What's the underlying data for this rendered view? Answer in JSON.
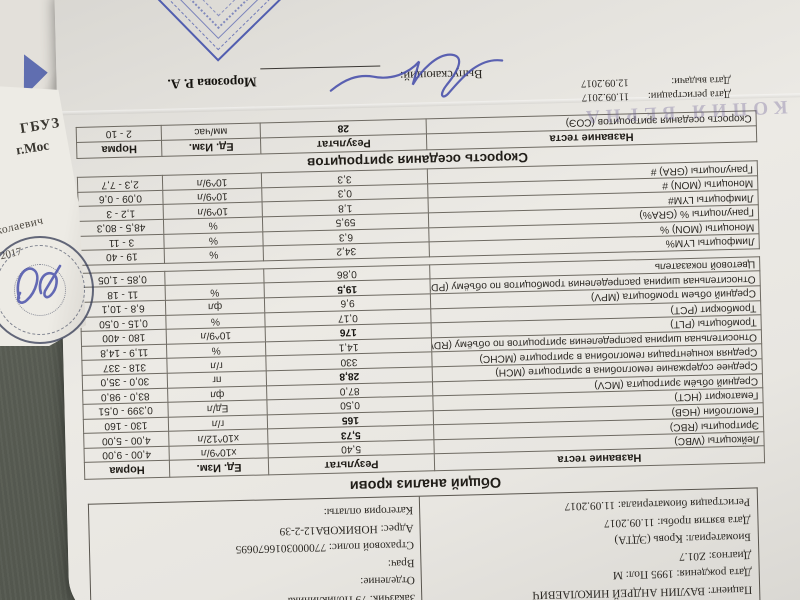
{
  "side_paper": {
    "org_line1": "ГБУЗ",
    "org_line2": "г.Мос",
    "handwritten_fragment": "колаевич",
    "year_fragment": "2017"
  },
  "report": {
    "patient_box": {
      "left_lines": [
        "Пациент: ВАУЛИН АНДРЕЙ НИКОЛАЕВИЧ",
        "Дата рождения: 1995 Пол: М",
        "Диагноз: Z01.7",
        "Биоматериал: Кровь (ЭДТА)",
        "Дата взятия пробы: 11.09.2017",
        "Регистрация биоматериала: 11.09.2017"
      ],
      "right_lines": [
        "Заказчик: 79 Поликлиника",
        "Отделение:",
        "Врач:",
        "Страховой полис: 7700003016670695",
        "Адрес: НОВИКОВА12-2-39",
        "Категория оплаты:"
      ]
    },
    "cbc": {
      "title": "Общий анализ крови",
      "columns": [
        "Название теста",
        "Результат",
        "Ед. Изм.",
        "Норма"
      ],
      "rows1": [
        {
          "name": "Лейкоциты (WBC)",
          "result": "5,40",
          "unit": "x10^9/л",
          "norm": "4,00 - 9,00",
          "flag": false
        },
        {
          "name": "Эритроциты (RBC)",
          "result": "5,73",
          "unit": "x10^12/л",
          "norm": "4,00 - 5,00",
          "flag": true
        },
        {
          "name": "Гемоглобин (HGB)",
          "result": "165",
          "unit": "г/л",
          "norm": "130 - 160",
          "flag": true
        },
        {
          "name": "Гематокрит (HCT)",
          "result": "0,50",
          "unit": "Ед/л",
          "norm": "0,399 - 0,51",
          "flag": false
        },
        {
          "name": "Средний объём эритроцита (MCV)",
          "result": "87,0",
          "unit": "фл",
          "norm": "83,0 - 98,0",
          "flag": false
        },
        {
          "name": "Среднее содержание гемоглобина в эритроците (MCH)",
          "result": "28,8",
          "unit": "пг",
          "norm": "30,0 - 35,0",
          "flag": true
        },
        {
          "name": "Средняя концентрация гемоглобина в эритроците (MCHC)",
          "result": "330",
          "unit": "г/л",
          "norm": "318 - 337",
          "flag": false
        },
        {
          "name": "Относительная ширина распределения эритроцитов по объёму (RDW)",
          "result": "14,1",
          "unit": "%",
          "norm": "11,9 - 14,8",
          "flag": false
        },
        {
          "name": "Тромбоциты (PLT)",
          "result": "176",
          "unit": "10^9/л",
          "norm": "180 - 400",
          "flag": true
        },
        {
          "name": "Тромбокрит (PCT)",
          "result": "0,17",
          "unit": "%",
          "norm": "0,15 - 0,50",
          "flag": false
        },
        {
          "name": "Средний объем тромбоцита (MPV)",
          "result": "9,6",
          "unit": "фл",
          "norm": "6,8 - 10,1",
          "flag": false
        },
        {
          "name": "Относительная ширина распределения тромбоцитов по объёму (PDW)",
          "result": "19,5",
          "unit": "%",
          "norm": "11 - 18",
          "flag": true
        },
        {
          "name": "Цветовой показатель",
          "result": "0,86",
          "unit": "",
          "norm": "0,85 - 1,05",
          "flag": false
        }
      ],
      "rows2": [
        {
          "name": "Лимфоциты LYM%",
          "result": "34,2",
          "unit": "%",
          "norm": "19 - 40",
          "flag": false
        },
        {
          "name": "Моноциты (MON) %",
          "result": "6,3",
          "unit": "%",
          "norm": "3 - 11",
          "flag": false
        },
        {
          "name": "Гранулоциты % (GRA%)",
          "result": "59,5",
          "unit": "%",
          "norm": "48,5 - 80,3",
          "flag": false
        },
        {
          "name": "Лимфоциты LYM#",
          "result": "1,8",
          "unit": "10^9/л",
          "norm": "1,2 - 3",
          "flag": false
        },
        {
          "name": "Моноциты (MON) #",
          "result": "0,3",
          "unit": "10^9/л",
          "norm": "0,09 - 0,6",
          "flag": false
        },
        {
          "name": "Гранулоциты (GRA) #",
          "result": "3,3",
          "unit": "10^9/л",
          "norm": "2,3 - 7,7",
          "flag": false
        }
      ]
    },
    "esr": {
      "section_title": "Скорость оседания эритроцитов",
      "columns": [
        "Название теста",
        "Результат",
        "Ед. Изм.",
        "Норма"
      ],
      "rows": [
        {
          "name": "Скорость оседания эритроцитов (СОЭ)",
          "result": "28",
          "unit": "мм/час",
          "norm": "2 - 10",
          "flag": true
        }
      ]
    },
    "footer": {
      "faint_stamp_text": "КОПИЯ ВЕРНА",
      "reg_label": "Дата регистрации:",
      "reg_value": "11.09.2017",
      "issue_label": "Дата выдачи:",
      "issue_value": "12.09.2017",
      "issuer_label": "Выпускающий:",
      "issuer_name": "Морозова Р. А."
    },
    "colors": {
      "stamp_blue": "#3848a8",
      "pen_blue": "#4a52ac",
      "faint_stamp_purple": "#6c6296"
    }
  }
}
